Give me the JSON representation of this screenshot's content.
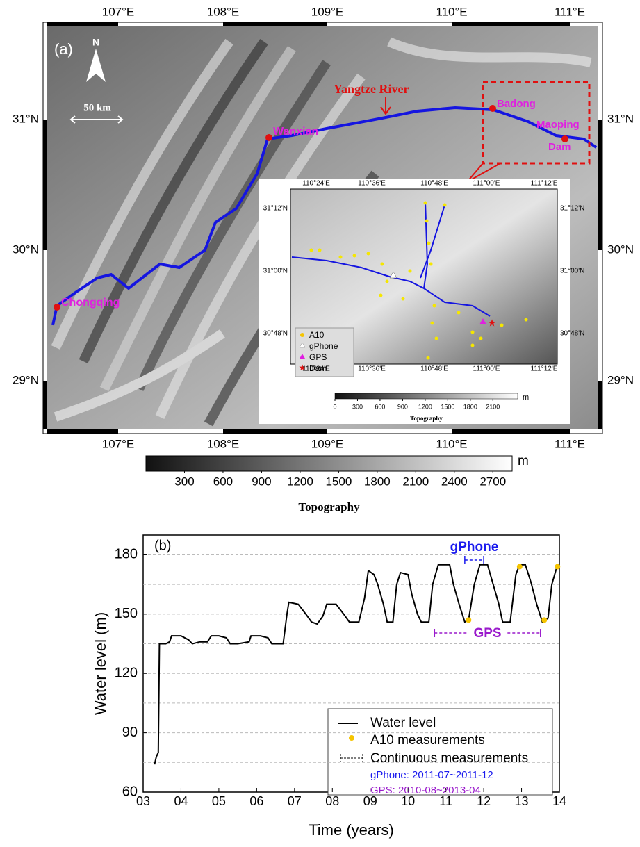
{
  "map": {
    "panel_label": "(a)",
    "north": "N",
    "scale_bar": "50 km",
    "lon_labels": [
      "107°E",
      "108°E",
      "109°E",
      "110°E",
      "111°E"
    ],
    "lat_labels": [
      "31°N",
      "30°N",
      "29°N"
    ],
    "places": [
      "Yangtze River",
      "Wanxian",
      "Chongqing",
      "Badong",
      "Maoping",
      "Dam"
    ],
    "colorbar": {
      "range": [
        0,
        2850
      ],
      "ticks": [
        300,
        600,
        900,
        1200,
        1500,
        1800,
        2100,
        2400,
        2700
      ],
      "unit": "m",
      "title": "Topography"
    },
    "inset": {
      "lon_labels": [
        "110°24'E",
        "110°36'E",
        "110°48'E",
        "111°00'E",
        "111°12'E"
      ],
      "lat_labels": [
        "31°12'N",
        "31°00'N",
        "30°48'N"
      ],
      "legend": [
        "A10",
        "gPhone",
        "GPS",
        "Dam"
      ],
      "colorbar": {
        "range": [
          0,
          2430
        ],
        "ticks": [
          0,
          300,
          600,
          900,
          1200,
          1500,
          1800,
          2100
        ],
        "unit": "m",
        "title": "Topography"
      }
    }
  },
  "chart_data": {
    "type": "line",
    "panel_label": "(b)",
    "x_label": "Time (years)",
    "y_label": "Water level (m)",
    "xlim": [
      3,
      14
    ],
    "xticks": [
      {
        "value": 3,
        "label": "03"
      },
      {
        "value": 4,
        "label": "04"
      },
      {
        "value": 5,
        "label": "05"
      },
      {
        "value": 6,
        "label": "06"
      },
      {
        "value": 7,
        "label": "07"
      },
      {
        "value": 8,
        "label": "08"
      },
      {
        "value": 9,
        "label": "09"
      },
      10,
      11,
      12,
      13,
      14
    ],
    "ylim": [
      60,
      190
    ],
    "yticks": [
      60,
      90,
      120,
      150,
      180
    ],
    "ygrid": [
      75,
      90,
      105,
      120,
      135,
      150,
      165,
      180
    ],
    "series": [
      {
        "name": "Water level",
        "color": "#000000",
        "x": [
          3.3,
          3.35,
          3.4,
          3.43,
          3.6,
          3.7,
          3.75,
          4.0,
          4.2,
          4.3,
          4.5,
          4.7,
          4.8,
          5.0,
          5.2,
          5.3,
          5.5,
          5.8,
          5.85,
          6.1,
          6.3,
          6.4,
          6.7,
          6.8,
          6.85,
          7.1,
          7.3,
          7.45,
          7.6,
          7.75,
          7.85,
          8.1,
          8.3,
          8.45,
          8.7,
          8.85,
          8.95,
          9.1,
          9.2,
          9.35,
          9.45,
          9.6,
          9.7,
          9.8,
          10.0,
          10.1,
          10.25,
          10.35,
          10.55,
          10.65,
          10.8,
          11.1,
          11.2,
          11.35,
          11.5,
          11.6,
          11.75,
          11.9,
          12.1,
          12.25,
          12.4,
          12.5,
          12.7,
          12.85,
          12.95,
          13.1,
          13.25,
          13.4,
          13.55,
          13.7,
          13.8,
          13.95
        ],
        "values": [
          74,
          78,
          80,
          135,
          135,
          136,
          139,
          139,
          137,
          135,
          136,
          136,
          139,
          139,
          138,
          135,
          135,
          136,
          139,
          139,
          138,
          135,
          135,
          150,
          156,
          155,
          150,
          146,
          145,
          149,
          155,
          155,
          150,
          146,
          146,
          158,
          172,
          170,
          165,
          155,
          146,
          146,
          165,
          171,
          170,
          160,
          150,
          146,
          146,
          165,
          175,
          175,
          165,
          155,
          146,
          147,
          165,
          175,
          175,
          165,
          155,
          146,
          146,
          170,
          175,
          175,
          166,
          155,
          146,
          148,
          165,
          175
        ]
      }
    ],
    "points": {
      "name": "A10 measurements",
      "color": "#f5c400",
      "x": [
        11.6,
        12.95,
        13.6,
        13.95
      ],
      "values": [
        147,
        174,
        147,
        174
      ]
    },
    "intervals": [
      {
        "name": "gPhone",
        "start": 11.5,
        "end": 12.0,
        "color": "#1a1aee"
      },
      {
        "name": "GPS",
        "start": 10.7,
        "end": 13.5,
        "color": "#9a1acc"
      }
    ],
    "interval_legend": "Continuous measurements",
    "notes": [
      {
        "text": "gPhone: 2011-07~2011-12",
        "color": "#1a1aee"
      },
      {
        "text": "GPS: 2010-08~2013-04",
        "color": "#9a1acc"
      }
    ]
  }
}
